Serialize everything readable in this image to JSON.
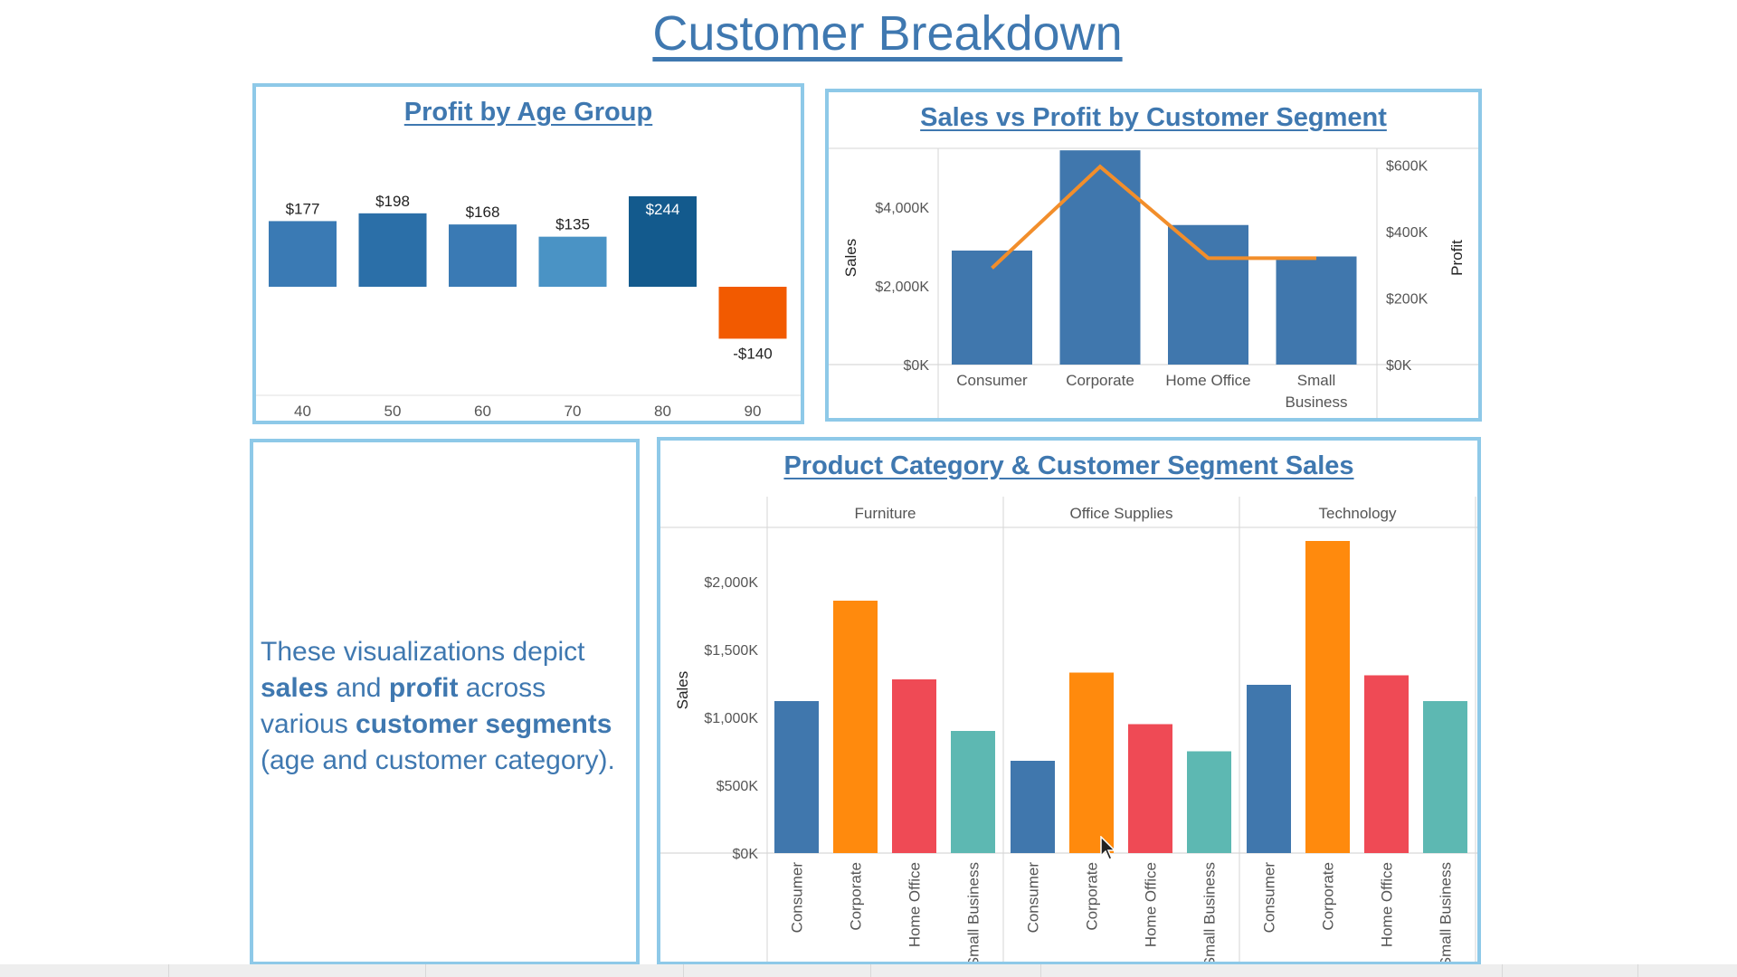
{
  "dashboard": {
    "title": "Customer Breakdown",
    "note": {
      "t1": "These visualizations depict ",
      "b1": "sales",
      "t2": " and ",
      "b2": "profit",
      "t3": " across various ",
      "b3": "customer segments",
      "t4": " (age and customer category)."
    }
  },
  "colors": {
    "panel_border": "#8ec9e8",
    "title": "#3f78b0",
    "consumer": "#4077ad",
    "corporate": "#ff8a0d",
    "home_office": "#ef4a55",
    "small_business": "#5db8b2",
    "profit_line": "#f28e2b",
    "negative": "#f25a00"
  },
  "chart_data": [
    {
      "type": "bar",
      "title": "Profit by Age Group",
      "categories": [
        "40",
        "50",
        "60",
        "70",
        "80",
        "90"
      ],
      "values": [
        177,
        198,
        168,
        135,
        244,
        -140
      ],
      "labels": [
        "$177",
        "$198",
        "$168",
        "$135",
        "$244",
        "-$140"
      ],
      "bar_colors": [
        "#3a7ab4",
        "#2b6fa8",
        "#3a7ab4",
        "#4a93c5",
        "#135a8d",
        "#f25a00"
      ]
    },
    {
      "type": "bar",
      "title": "Sales vs Profit by Customer Segment",
      "categories": [
        "Consumer",
        "Corporate",
        "Home Office",
        "Small Business"
      ],
      "series": [
        {
          "name": "Sales",
          "values": [
            2900,
            5450,
            3550,
            2750
          ]
        },
        {
          "name": "Profit",
          "values": [
            290000,
            595000,
            320000,
            320000
          ]
        }
      ],
      "ylabel": "Sales",
      "y2label": "Profit",
      "ylim": [
        0,
        5500
      ],
      "y2lim": [
        0,
        650000
      ],
      "yticks": [
        "$0K",
        "$2,000K",
        "$4,000K"
      ],
      "y2ticks": [
        "$0K",
        "$200K",
        "$400K",
        "$600K"
      ]
    },
    {
      "type": "bar",
      "title": "Product Category & Customer Segment Sales",
      "panels": [
        "Furniture",
        "Office Supplies",
        "Technology"
      ],
      "categories": [
        "Consumer",
        "Corporate",
        "Home Office",
        "Small Business"
      ],
      "values": [
        [
          1120,
          1860,
          1280,
          900
        ],
        [
          680,
          1330,
          950,
          750
        ],
        [
          1240,
          2300,
          1310,
          1120
        ]
      ],
      "ylabel": "Sales",
      "ylim": [
        0,
        2400
      ],
      "yticks": [
        "$0K",
        "$500K",
        "$1,000K",
        "$1,500K",
        "$2,000K"
      ]
    }
  ]
}
